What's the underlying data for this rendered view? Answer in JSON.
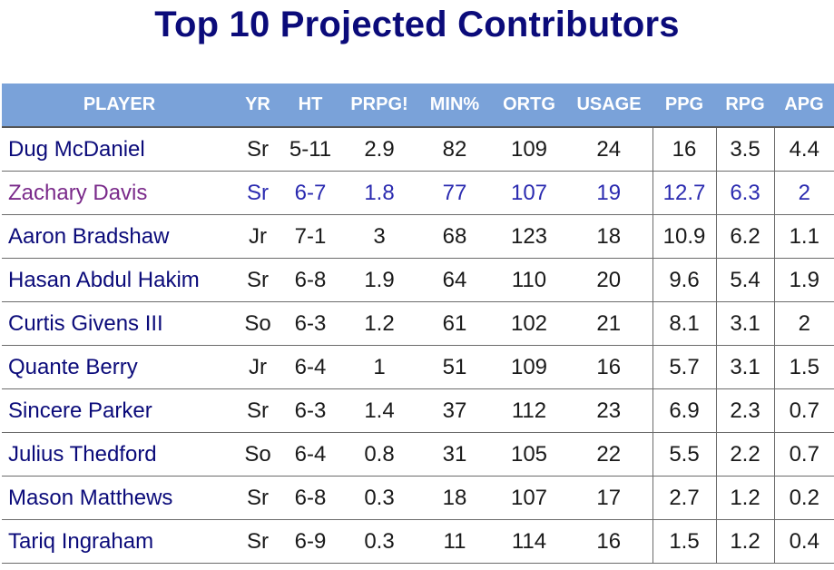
{
  "title": "Top 10 Projected Contributors",
  "table": {
    "headers": [
      "PLAYER",
      "YR",
      "HT",
      "PRPG!",
      "MIN%",
      "ORTG",
      "USAGE",
      "PPG",
      "RPG",
      "APG"
    ],
    "rows": [
      {
        "player": "Dug McDaniel",
        "yr": "Sr",
        "ht": "5-11",
        "prpg": "2.9",
        "min": "82",
        "ortg": "109",
        "usage": "24",
        "ppg": "16",
        "rpg": "3.5",
        "apg": "4.4"
      },
      {
        "player": "Zachary Davis",
        "yr": "Sr",
        "ht": "6-7",
        "prpg": "1.8",
        "min": "77",
        "ortg": "107",
        "usage": "19",
        "ppg": "12.7",
        "rpg": "6.3",
        "apg": "2"
      },
      {
        "player": "Aaron Bradshaw",
        "yr": "Jr",
        "ht": "7-1",
        "prpg": "3",
        "min": "68",
        "ortg": "123",
        "usage": "18",
        "ppg": "10.9",
        "rpg": "6.2",
        "apg": "1.1"
      },
      {
        "player": "Hasan Abdul Hakim",
        "yr": "Sr",
        "ht": "6-8",
        "prpg": "1.9",
        "min": "64",
        "ortg": "110",
        "usage": "20",
        "ppg": "9.6",
        "rpg": "5.4",
        "apg": "1.9"
      },
      {
        "player": "Curtis Givens III",
        "yr": "So",
        "ht": "6-3",
        "prpg": "1.2",
        "min": "61",
        "ortg": "102",
        "usage": "21",
        "ppg": "8.1",
        "rpg": "3.1",
        "apg": "2"
      },
      {
        "player": "Quante Berry",
        "yr": "Jr",
        "ht": "6-4",
        "prpg": "1",
        "min": "51",
        "ortg": "109",
        "usage": "16",
        "ppg": "5.7",
        "rpg": "3.1",
        "apg": "1.5"
      },
      {
        "player": "Sincere Parker",
        "yr": "Sr",
        "ht": "6-3",
        "prpg": "1.4",
        "min": "37",
        "ortg": "112",
        "usage": "23",
        "ppg": "6.9",
        "rpg": "2.3",
        "apg": "0.7"
      },
      {
        "player": "Julius Thedford",
        "yr": "So",
        "ht": "6-4",
        "prpg": "0.8",
        "min": "31",
        "ortg": "105",
        "usage": "22",
        "ppg": "5.5",
        "rpg": "2.2",
        "apg": "0.7"
      },
      {
        "player": "Mason Matthews",
        "yr": "Sr",
        "ht": "6-8",
        "prpg": "0.3",
        "min": "18",
        "ortg": "107",
        "usage": "17",
        "ppg": "2.7",
        "rpg": "1.2",
        "apg": "0.2"
      },
      {
        "player": "Tariq Ingraham",
        "yr": "Sr",
        "ht": "6-9",
        "prpg": "0.3",
        "min": "11",
        "ortg": "114",
        "usage": "16",
        "ppg": "1.5",
        "rpg": "1.2",
        "apg": "0.4"
      }
    ]
  }
}
